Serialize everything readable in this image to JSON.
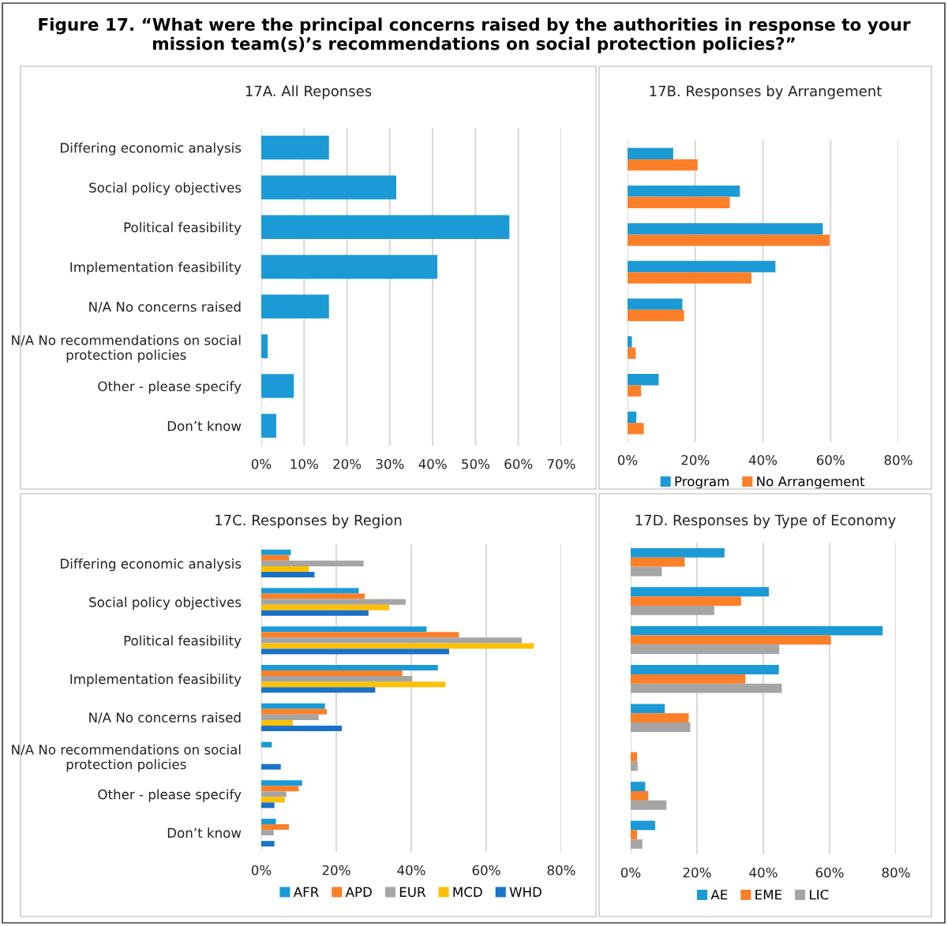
{
  "chart_data": [
    {
      "type": "bar",
      "orientation": "horizontal",
      "title": "Figure 17. “What were the principal concerns raised by the authorities in response to your mission team(s)’s recommendations on social protection policies?”",
      "subtitle": "17A. All Reponses",
      "categories": [
        "Differing economic analysis",
        "Social policy objectives",
        "Political feasibility",
        "Implementation feasibility",
        "N/A No concerns raised",
        "N/A No recommendations on social protection policies",
        "Other - please specify",
        "Don’t know"
      ],
      "series": [
        {
          "color": "#1b9ad6",
          "values": [
            15.8,
            31.5,
            57.9,
            41.1,
            15.8,
            1.5,
            7.6,
            3.5
          ]
        }
      ],
      "xlim": [
        0,
        70
      ],
      "xticks": [
        {
          "value": 0,
          "label": "0%"
        },
        {
          "value": 10,
          "label": "10%"
        },
        {
          "value": 20,
          "label": "20%"
        },
        {
          "value": 30,
          "label": "30%"
        },
        {
          "value": 40,
          "label": "40%"
        },
        {
          "value": 50,
          "label": "50%"
        },
        {
          "value": 60,
          "label": "60%"
        },
        {
          "value": 70,
          "label": "70%"
        }
      ],
      "grid": "x",
      "legend": false
    },
    {
      "type": "bar",
      "orientation": "horizontal",
      "subtitle": "17B. Responses by Arrangement",
      "categories": [
        null,
        null,
        null,
        null,
        null,
        null,
        null,
        null
      ],
      "series": [
        {
          "name": "Program",
          "color": "#1b9ad6",
          "values": [
            13.5,
            33.2,
            57.7,
            43.7,
            16.2,
            1.3,
            9.2,
            2.6
          ]
        },
        {
          "name": "No Arrangement",
          "color": "#fd7f27",
          "values": [
            20.7,
            30.2,
            59.7,
            36.6,
            16.7,
            2.4,
            4.0,
            4.8
          ]
        }
      ],
      "xlim": [
        0,
        80
      ],
      "xticks": [
        {
          "value": 0,
          "label": "0%"
        },
        {
          "value": 20,
          "label": "20%"
        },
        {
          "value": 40,
          "label": "40%"
        },
        {
          "value": 60,
          "label": "60%"
        },
        {
          "value": 80,
          "label": "80%"
        }
      ],
      "grid": "x",
      "legend": "bottom"
    },
    {
      "type": "bar",
      "orientation": "horizontal",
      "subtitle": "17C. Responses by Region",
      "categories": [
        "Differing economic analysis",
        "Social policy objectives",
        "Political feasibility",
        "Implementation feasibility",
        "N/A No concerns raised",
        "N/A No recommendations on social protection policies",
        "Other - please specify",
        "Don’t know"
      ],
      "series": [
        {
          "name": "AFR",
          "color": "#1b9ad6",
          "values": [
            7.9,
            26.0,
            44.1,
            47.1,
            17.0,
            2.8,
            10.9,
            3.9
          ]
        },
        {
          "name": "APD",
          "color": "#fd7f27",
          "values": [
            7.4,
            27.6,
            52.7,
            37.6,
            17.5,
            0,
            10.0,
            7.4
          ]
        },
        {
          "name": "EUR",
          "color": "#a5a5a5",
          "values": [
            27.3,
            38.5,
            69.5,
            40.3,
            15.3,
            0,
            6.7,
            3.3
          ]
        },
        {
          "name": "MCD",
          "color": "#ffc000",
          "values": [
            12.7,
            34.1,
            72.7,
            49.1,
            8.4,
            0,
            6.3,
            0
          ]
        },
        {
          "name": "WHD",
          "color": "#1a72c6",
          "values": [
            14.2,
            28.6,
            50.1,
            30.4,
            21.5,
            5.2,
            3.5,
            3.5
          ]
        }
      ],
      "xlim": [
        0,
        80
      ],
      "xticks": [
        {
          "value": 0,
          "label": "0%"
        },
        {
          "value": 20,
          "label": "20%"
        },
        {
          "value": 40,
          "label": "40%"
        },
        {
          "value": 60,
          "label": "60%"
        },
        {
          "value": 80,
          "label": "80%"
        }
      ],
      "grid": "x",
      "legend": "bottom"
    },
    {
      "type": "bar",
      "orientation": "horizontal",
      "subtitle": "17D. Responses by Type of Economy",
      "categories": [
        null,
        null,
        null,
        null,
        null,
        null,
        null,
        null
      ],
      "series": [
        {
          "name": "AE",
          "color": "#1b9ad6",
          "values": [
            28.3,
            41.7,
            76.0,
            44.7,
            10.3,
            0,
            4.4,
            7.4
          ]
        },
        {
          "name": "EME",
          "color": "#fd7f27",
          "values": [
            16.3,
            33.3,
            60.4,
            34.6,
            17.5,
            1.9,
            5.3,
            1.9
          ]
        },
        {
          "name": "LIC",
          "color": "#a5a5a5",
          "values": [
            9.4,
            25.2,
            44.8,
            45.6,
            18.0,
            2.1,
            10.8,
            3.5
          ]
        }
      ],
      "xlim": [
        0,
        80
      ],
      "xticks": [
        {
          "value": 0,
          "label": "0%"
        },
        {
          "value": 20,
          "label": "20%"
        },
        {
          "value": 40,
          "label": "40%"
        },
        {
          "value": 60,
          "label": "60%"
        },
        {
          "value": 80,
          "label": "80%"
        }
      ],
      "grid": "x",
      "legend": "bottom"
    }
  ]
}
